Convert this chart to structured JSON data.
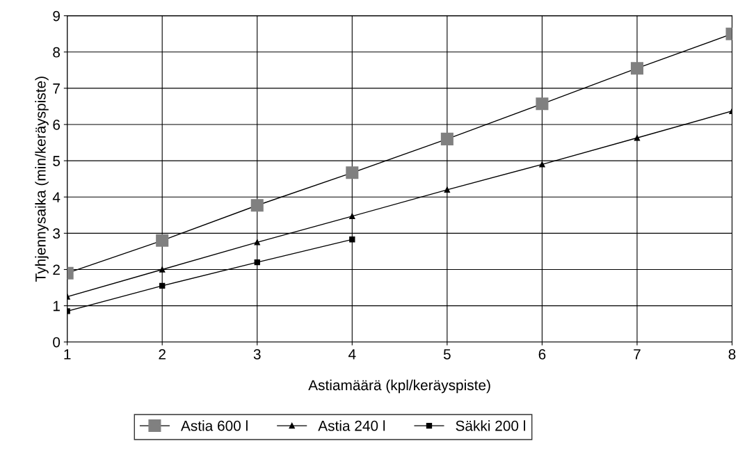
{
  "chart_data": {
    "type": "line",
    "xlabel": "Astiamäärä (kpl/keräyspiste)",
    "ylabel": "Tyhjennysaika (min/keräyspiste)",
    "x": [
      1,
      2,
      3,
      4,
      5,
      6,
      7,
      8
    ],
    "xlim": [
      1,
      8
    ],
    "xticks": [
      1,
      2,
      3,
      4,
      5,
      6,
      7,
      8
    ],
    "ylim": [
      0,
      9
    ],
    "yticks": [
      0,
      1,
      2,
      3,
      4,
      5,
      6,
      7,
      8,
      9
    ],
    "grid": true,
    "legend": "bottom",
    "series": [
      {
        "name": "Astia 600 l",
        "color": "#808080",
        "marker": "square",
        "values": [
          1.9,
          2.8,
          3.77,
          4.67,
          5.6,
          6.57,
          7.55,
          8.5
        ]
      },
      {
        "name": "Astia 240 l",
        "color": "#000000",
        "marker": "triangle",
        "values": [
          1.25,
          2.0,
          2.75,
          3.47,
          4.2,
          4.9,
          5.63,
          6.37
        ]
      },
      {
        "name": "Säkki 200 l",
        "color": "#000000",
        "marker": "square",
        "x": [
          1,
          2,
          3,
          4
        ],
        "values": [
          0.85,
          1.55,
          2.2,
          2.83
        ]
      }
    ]
  }
}
